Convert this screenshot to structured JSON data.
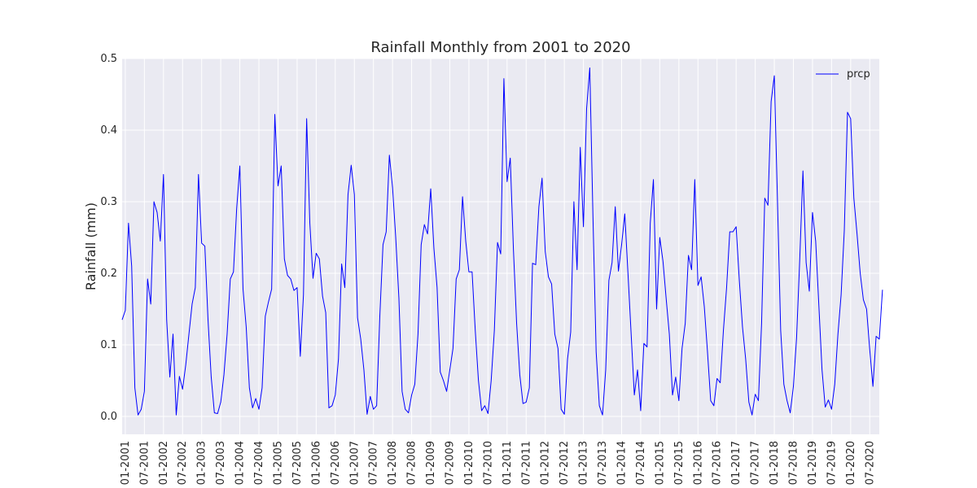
{
  "chart_data": {
    "type": "line",
    "title": "Rainfall Monthly from 2001 to 2020",
    "xlabel": "",
    "ylabel": "Rainfall (mm)",
    "ylim": [
      -0.025,
      0.5
    ],
    "yticks": [
      0.0,
      0.1,
      0.2,
      0.3,
      0.4,
      0.5
    ],
    "ytick_labels": [
      "0.0",
      "0.1",
      "0.2",
      "0.3",
      "0.4",
      "0.5"
    ],
    "xlim": [
      "2000-12",
      "2020-10"
    ],
    "xticks": [
      "2001-01",
      "2001-07",
      "2002-01",
      "2002-07",
      "2003-01",
      "2003-07",
      "2004-01",
      "2004-07",
      "2005-01",
      "2005-07",
      "2006-01",
      "2006-07",
      "2007-01",
      "2007-07",
      "2008-01",
      "2008-07",
      "2009-01",
      "2009-07",
      "2010-01",
      "2010-07",
      "2011-01",
      "2011-07",
      "2012-01",
      "2012-07",
      "2013-01",
      "2013-07",
      "2014-01",
      "2014-07",
      "2015-01",
      "2015-07",
      "2016-01",
      "2016-07",
      "2017-01",
      "2017-07",
      "2018-01",
      "2018-07",
      "2019-01",
      "2019-07",
      "2020-01",
      "2020-07"
    ],
    "xtick_labels": [
      "01-2001",
      "07-2001",
      "01-2002",
      "07-2002",
      "01-2003",
      "07-2003",
      "01-2004",
      "07-2004",
      "01-2005",
      "07-2005",
      "01-2006",
      "07-2006",
      "01-2007",
      "07-2007",
      "01-2008",
      "07-2008",
      "01-2009",
      "07-2009",
      "01-2010",
      "07-2010",
      "01-2011",
      "07-2011",
      "01-2012",
      "07-2012",
      "01-2013",
      "07-2013",
      "01-2014",
      "07-2014",
      "01-2015",
      "07-2015",
      "01-2016",
      "07-2016",
      "01-2017",
      "07-2017",
      "01-2018",
      "07-2018",
      "01-2019",
      "07-2019",
      "01-2020",
      "07-2020"
    ],
    "grid": true,
    "legend_position": "top-right",
    "series": [
      {
        "name": "prcp",
        "color": "#0000ff",
        "x_start": "2000-12",
        "x_end": "2020-09",
        "values": [
          0.135,
          0.148,
          0.27,
          0.21,
          0.04,
          0.002,
          0.01,
          0.035,
          0.192,
          0.157,
          0.3,
          0.285,
          0.245,
          0.338,
          0.135,
          0.055,
          0.115,
          0.002,
          0.056,
          0.038,
          0.072,
          0.115,
          0.157,
          0.18,
          0.338,
          0.242,
          0.238,
          0.135,
          0.055,
          0.005,
          0.004,
          0.02,
          0.058,
          0.115,
          0.192,
          0.202,
          0.29,
          0.35,
          0.178,
          0.125,
          0.04,
          0.012,
          0.025,
          0.01,
          0.04,
          0.14,
          0.16,
          0.178,
          0.422,
          0.322,
          0.35,
          0.22,
          0.197,
          0.192,
          0.176,
          0.18,
          0.084,
          0.17,
          0.416,
          0.27,
          0.193,
          0.228,
          0.22,
          0.168,
          0.145,
          0.012,
          0.015,
          0.03,
          0.08,
          0.213,
          0.18,
          0.31,
          0.351,
          0.31,
          0.138,
          0.108,
          0.065,
          0.003,
          0.028,
          0.01,
          0.015,
          0.14,
          0.24,
          0.258,
          0.365,
          0.32,
          0.25,
          0.165,
          0.035,
          0.01,
          0.005,
          0.03,
          0.045,
          0.115,
          0.24,
          0.268,
          0.255,
          0.318,
          0.235,
          0.18,
          0.062,
          0.05,
          0.035,
          0.065,
          0.095,
          0.192,
          0.205,
          0.307,
          0.245,
          0.202,
          0.202,
          0.12,
          0.05,
          0.008,
          0.015,
          0.004,
          0.05,
          0.12,
          0.243,
          0.227,
          0.472,
          0.328,
          0.361,
          0.233,
          0.13,
          0.058,
          0.018,
          0.02,
          0.04,
          0.214,
          0.212,
          0.293,
          0.333,
          0.23,
          0.195,
          0.185,
          0.115,
          0.095,
          0.01,
          0.003,
          0.08,
          0.118,
          0.3,
          0.205,
          0.376,
          0.265,
          0.43,
          0.487,
          0.278,
          0.09,
          0.015,
          0.002,
          0.065,
          0.19,
          0.215,
          0.293,
          0.203,
          0.24,
          0.283,
          0.2,
          0.115,
          0.03,
          0.065,
          0.008,
          0.102,
          0.097,
          0.27,
          0.331,
          0.15,
          0.25,
          0.217,
          0.165,
          0.115,
          0.03,
          0.055,
          0.022,
          0.095,
          0.13,
          0.225,
          0.205,
          0.331,
          0.183,
          0.195,
          0.153,
          0.09,
          0.022,
          0.015,
          0.053,
          0.047,
          0.12,
          0.18,
          0.258,
          0.258,
          0.265,
          0.19,
          0.125,
          0.08,
          0.02,
          0.002,
          0.031,
          0.022,
          0.13,
          0.305,
          0.295,
          0.44,
          0.476,
          0.3,
          0.12,
          0.045,
          0.022,
          0.005,
          0.042,
          0.11,
          0.22,
          0.343,
          0.215,
          0.175,
          0.285,
          0.245,
          0.155,
          0.065,
          0.013,
          0.023,
          0.01,
          0.045,
          0.115,
          0.17,
          0.26,
          0.425,
          0.416,
          0.305,
          0.255,
          0.2,
          0.163,
          0.15,
          0.093,
          0.042,
          0.112,
          0.108,
          0.177
        ]
      }
    ]
  }
}
